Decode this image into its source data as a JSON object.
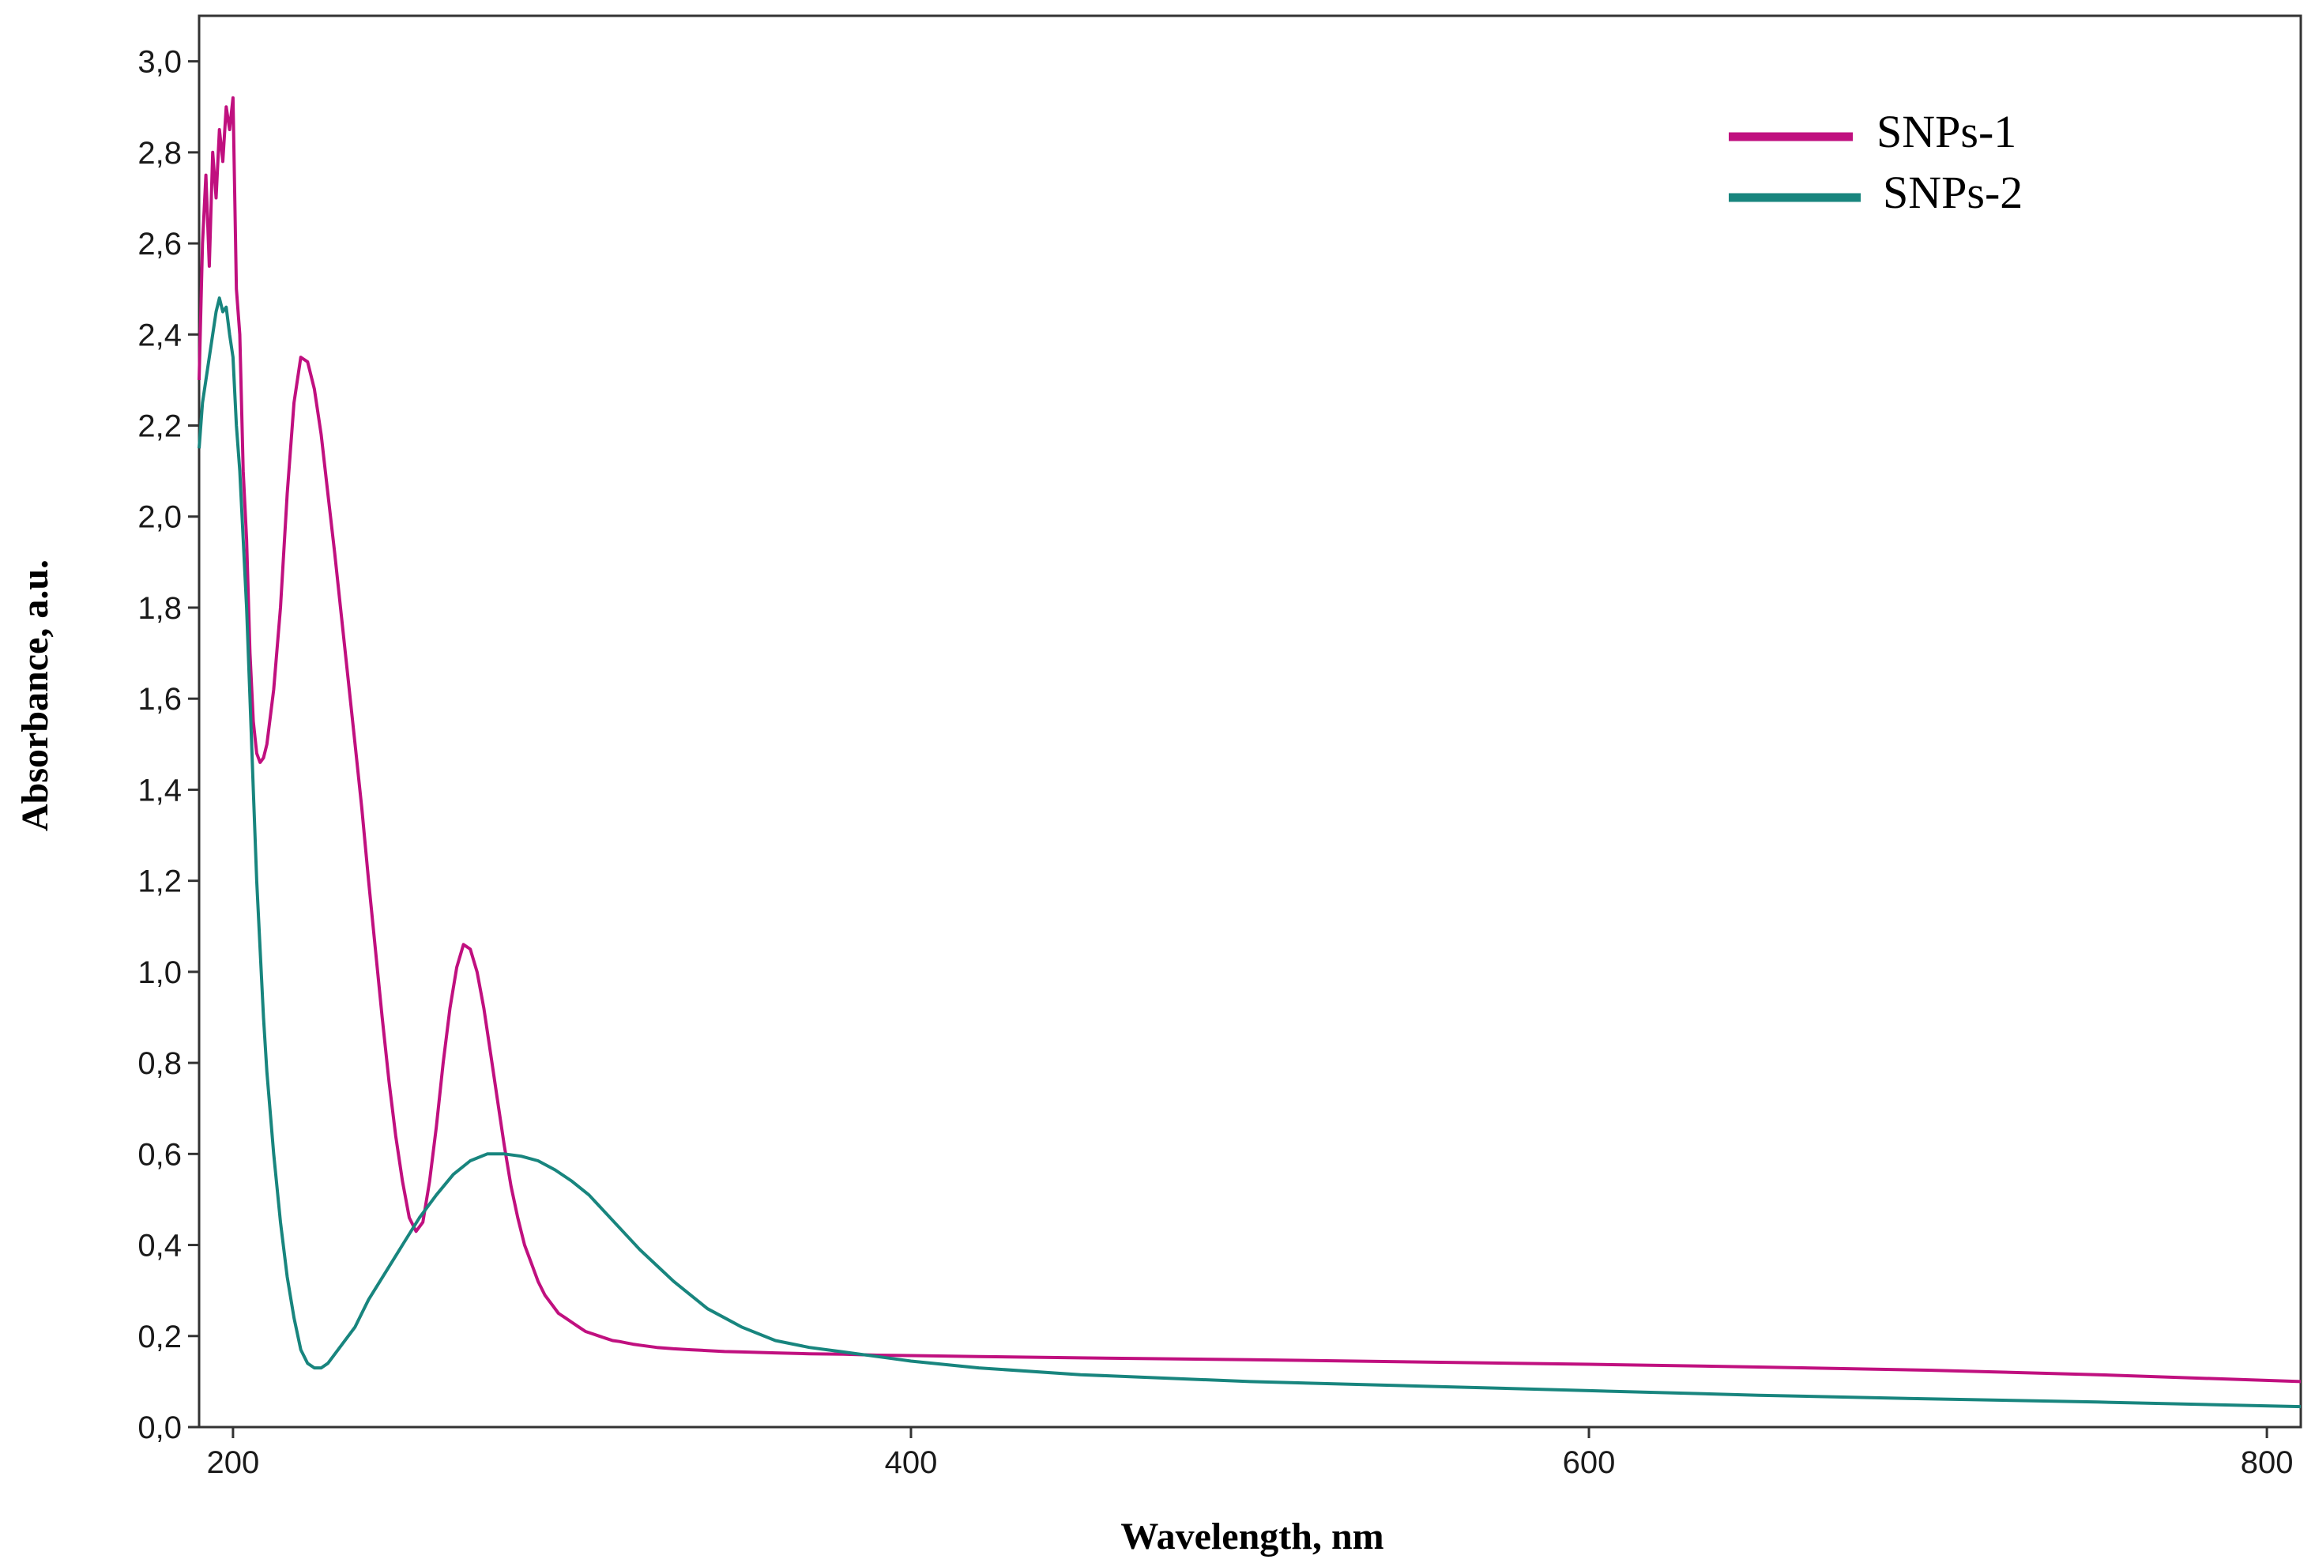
{
  "chart_data": {
    "type": "line",
    "xlabel": "Wavelength, nm",
    "ylabel": "Absorbance, a.u.",
    "xlim": [
      190,
      810
    ],
    "ylim": [
      0,
      3.1
    ],
    "xticks": [
      200,
      400,
      600,
      800
    ],
    "xtick_labels": [
      "200",
      "400",
      "600",
      "800"
    ],
    "yticks": [
      0,
      0.2,
      0.4,
      0.6,
      0.8,
      1.0,
      1.2,
      1.4,
      1.6,
      1.8,
      2.0,
      2.2,
      2.4,
      2.6,
      2.8,
      3.0
    ],
    "ytick_labels": [
      "0,0",
      "0,2",
      "0,4",
      "0,6",
      "0,8",
      "1,0",
      "1,2",
      "1,4",
      "1,6",
      "1,8",
      "2,0",
      "2,2",
      "2,4",
      "2,6",
      "2,8",
      "3,0"
    ],
    "grid": false,
    "legend_position": "top-right",
    "series": [
      {
        "name": "SNPs-1",
        "color": "#c0107f",
        "x": [
          190,
          191,
          192,
          193,
          194,
          195,
          196,
          197,
          198,
          199,
          200,
          201,
          202,
          203,
          204,
          205,
          206,
          207,
          208,
          209,
          210,
          212,
          214,
          216,
          218,
          220,
          222,
          224,
          226,
          228,
          230,
          232,
          234,
          236,
          238,
          240,
          242,
          244,
          246,
          248,
          250,
          252,
          254,
          256,
          258,
          260,
          262,
          264,
          266,
          268,
          270,
          272,
          274,
          276,
          278,
          280,
          282,
          284,
          286,
          288,
          290,
          292,
          294,
          296,
          298,
          300,
          302,
          304,
          306,
          308,
          310,
          312,
          314,
          316,
          318,
          320,
          325,
          330,
          335,
          340,
          345,
          350,
          360,
          370,
          380,
          390,
          400,
          420,
          450,
          500,
          550,
          600,
          650,
          700,
          750,
          810
        ],
        "y": [
          2.3,
          2.6,
          2.75,
          2.55,
          2.8,
          2.7,
          2.85,
          2.78,
          2.9,
          2.85,
          2.92,
          2.5,
          2.4,
          2.1,
          1.95,
          1.7,
          1.55,
          1.48,
          1.46,
          1.47,
          1.5,
          1.62,
          1.8,
          2.05,
          2.25,
          2.35,
          2.34,
          2.28,
          2.18,
          2.05,
          1.92,
          1.78,
          1.64,
          1.5,
          1.36,
          1.2,
          1.05,
          0.9,
          0.76,
          0.64,
          0.54,
          0.46,
          0.43,
          0.45,
          0.54,
          0.66,
          0.8,
          0.92,
          1.01,
          1.06,
          1.05,
          1.0,
          0.92,
          0.82,
          0.72,
          0.62,
          0.53,
          0.46,
          0.4,
          0.36,
          0.32,
          0.29,
          0.27,
          0.25,
          0.24,
          0.23,
          0.22,
          0.21,
          0.205,
          0.2,
          0.195,
          0.19,
          0.188,
          0.185,
          0.182,
          0.18,
          0.175,
          0.172,
          0.17,
          0.168,
          0.166,
          0.165,
          0.163,
          0.161,
          0.16,
          0.158,
          0.157,
          0.155,
          0.152,
          0.148,
          0.143,
          0.138,
          0.132,
          0.125,
          0.115,
          0.1
        ]
      },
      {
        "name": "SNPs-2",
        "color": "#18857e",
        "x": [
          190,
          191,
          192,
          193,
          194,
          195,
          196,
          197,
          198,
          199,
          200,
          201,
          202,
          203,
          204,
          205,
          206,
          207,
          208,
          209,
          210,
          212,
          214,
          216,
          218,
          220,
          222,
          224,
          226,
          228,
          230,
          232,
          234,
          236,
          238,
          240,
          245,
          250,
          255,
          260,
          265,
          270,
          275,
          280,
          285,
          290,
          295,
          300,
          305,
          310,
          315,
          320,
          325,
          330,
          335,
          340,
          345,
          350,
          360,
          370,
          380,
          390,
          400,
          420,
          450,
          500,
          550,
          600,
          650,
          700,
          750,
          810
        ],
        "y": [
          2.15,
          2.25,
          2.3,
          2.35,
          2.4,
          2.45,
          2.48,
          2.45,
          2.46,
          2.4,
          2.35,
          2.2,
          2.1,
          1.95,
          1.8,
          1.6,
          1.4,
          1.2,
          1.05,
          0.9,
          0.78,
          0.6,
          0.45,
          0.33,
          0.24,
          0.17,
          0.14,
          0.13,
          0.13,
          0.14,
          0.16,
          0.18,
          0.2,
          0.22,
          0.25,
          0.28,
          0.34,
          0.4,
          0.46,
          0.51,
          0.555,
          0.585,
          0.6,
          0.6,
          0.595,
          0.585,
          0.565,
          0.54,
          0.51,
          0.47,
          0.43,
          0.39,
          0.355,
          0.32,
          0.29,
          0.26,
          0.24,
          0.22,
          0.19,
          0.175,
          0.165,
          0.155,
          0.145,
          0.13,
          0.115,
          0.1,
          0.09,
          0.08,
          0.07,
          0.062,
          0.055,
          0.045
        ]
      }
    ]
  }
}
